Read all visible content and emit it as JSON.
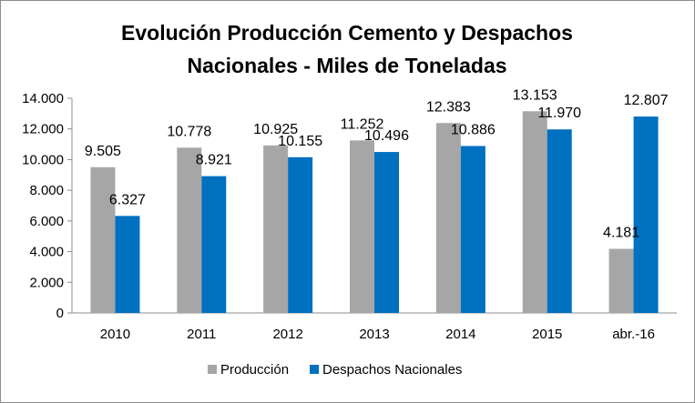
{
  "chart_data": {
    "type": "bar",
    "title_lines": [
      "Evolución Producción Cemento y Despachos",
      "Nacionales  - Miles de Toneladas"
    ],
    "categories": [
      "2010",
      "2011",
      "2012",
      "2013",
      "2014",
      "2015",
      "abr.-16"
    ],
    "series": [
      {
        "name": "Producción",
        "color": "#a6a6a6",
        "values": [
          9505,
          10778,
          10925,
          11252,
          12383,
          13153,
          4181
        ],
        "labels": [
          "9.505",
          "10.778",
          "10.925",
          "11.252",
          "12.383",
          "13.153",
          "4.181"
        ]
      },
      {
        "name": "Despachos Nacionales",
        "color": "#0070c0",
        "values": [
          6327,
          8921,
          10155,
          10496,
          10886,
          11970,
          12807
        ],
        "labels": [
          "6.327",
          "8.921",
          "10.155",
          "10.496",
          "10.886",
          "11.970",
          "12.807"
        ]
      }
    ],
    "ylim": [
      0,
      14000
    ],
    "yticks": [
      0,
      2000,
      4000,
      6000,
      8000,
      10000,
      12000,
      14000
    ],
    "ytick_labels": [
      "0",
      "2.000",
      "4.000",
      "6.000",
      "8.000",
      "10.000",
      "12.000",
      "14.000"
    ],
    "legend_position": "bottom",
    "grid": false
  }
}
